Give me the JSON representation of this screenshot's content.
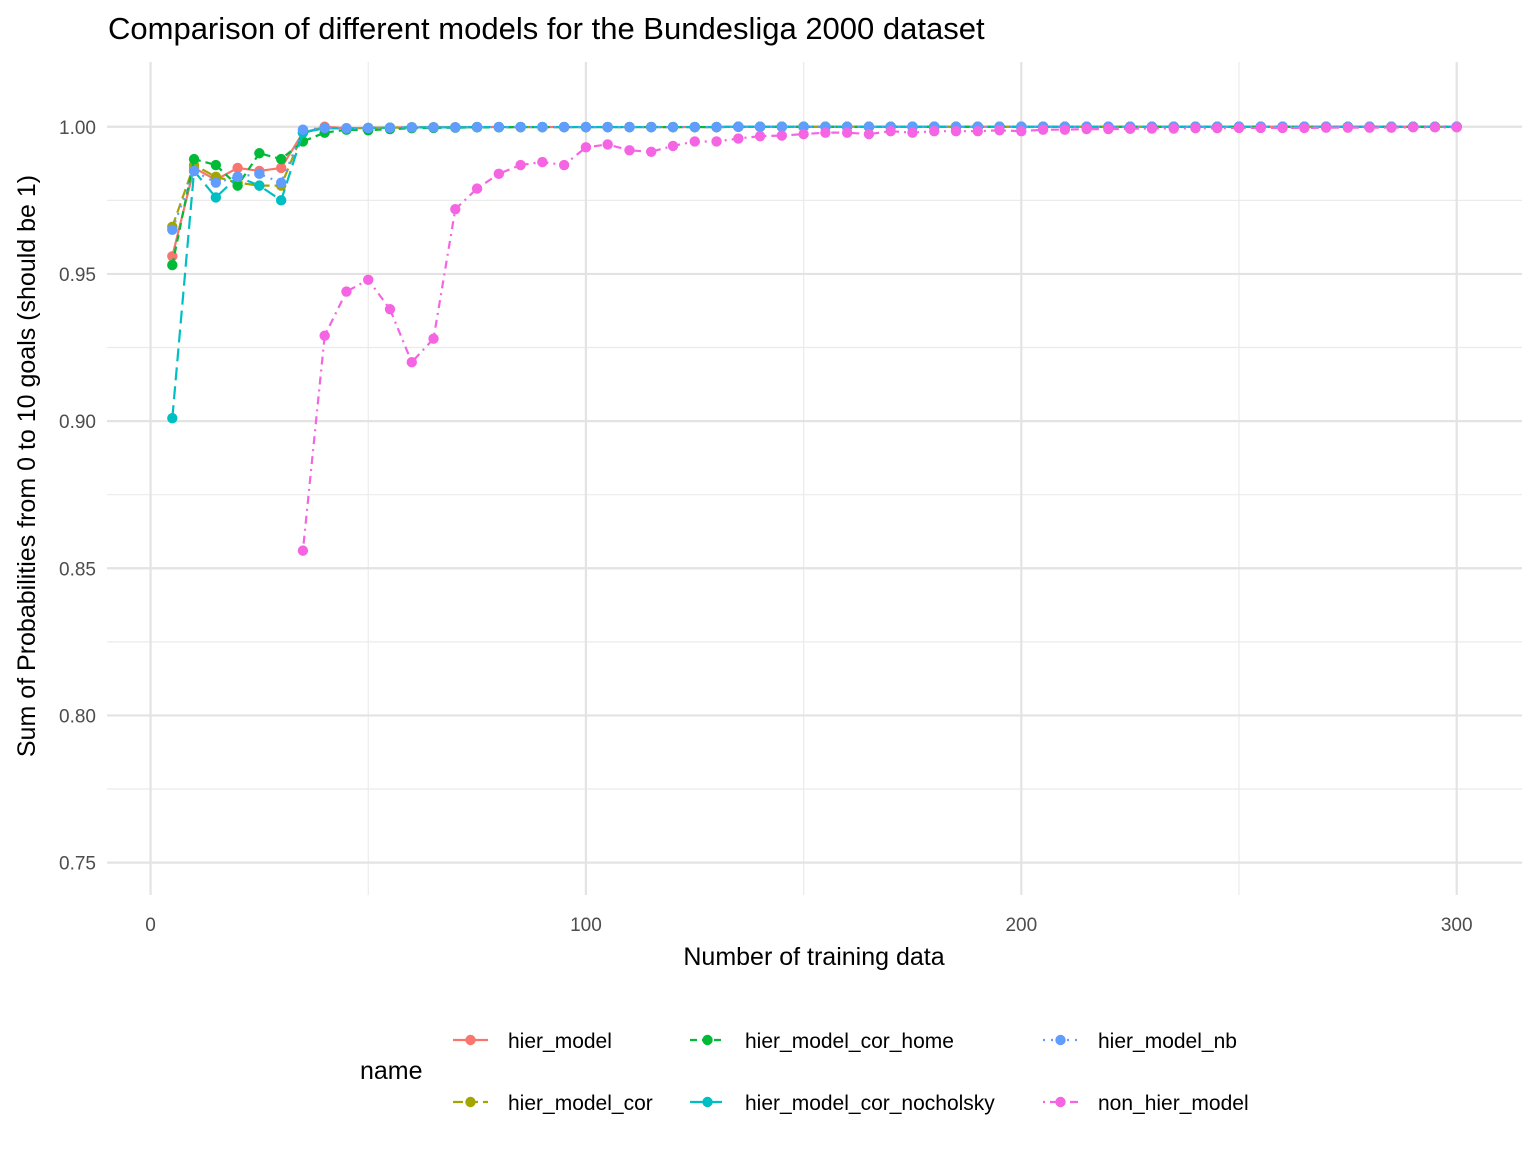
{
  "chart_data": {
    "type": "line",
    "title": "Comparison of different models for the Bundesliga 2000 dataset",
    "xlabel": "Number of training data",
    "ylabel": "Sum of Probabilities from 0 to 10 goals (should be 1)",
    "xlim": [
      -10,
      315
    ],
    "ylim": [
      0.739,
      1.022
    ],
    "x_ticks": [
      0,
      100,
      200,
      300
    ],
    "x_tick_labels": [
      "0",
      "100",
      "200",
      "300"
    ],
    "y_ticks": [
      0.75,
      0.8,
      0.85,
      0.9,
      0.95,
      1.0
    ],
    "y_tick_labels": [
      "0.75",
      "0.80",
      "0.85",
      "0.90",
      "0.95",
      "1.00"
    ],
    "grid": true,
    "legend": {
      "title": "name",
      "position": "bottom"
    },
    "series": [
      {
        "name": "hier_model",
        "color": "#F8766D",
        "dash": "solid",
        "x": [
          5,
          10,
          15,
          20,
          25,
          30,
          35,
          40,
          45,
          50,
          55,
          60,
          65,
          70,
          75,
          80,
          85,
          90,
          95,
          100,
          105,
          110,
          115,
          120,
          125,
          130,
          135,
          140,
          145,
          150,
          155,
          160,
          165,
          170,
          175,
          180,
          185,
          190,
          195,
          200,
          205,
          210,
          215,
          220,
          225,
          230,
          235,
          240,
          245,
          250,
          255,
          260,
          265,
          270,
          275,
          280,
          285,
          290,
          295,
          300
        ],
        "y": [
          0.956,
          0.986,
          0.982,
          0.986,
          0.985,
          0.986,
          0.998,
          1.0,
          0.9995,
          0.9996,
          0.9997,
          0.9998,
          0.9998,
          0.9998,
          0.9999,
          0.9999,
          0.9999,
          0.9999,
          0.9999,
          0.9999,
          0.9999,
          0.9999,
          0.9999,
          0.9999,
          0.9999,
          0.9999,
          1.0,
          1.0,
          1.0,
          1.0,
          1.0,
          1.0,
          1.0,
          1.0,
          1.0,
          1.0,
          1.0,
          1.0,
          1.0,
          1.0,
          1.0,
          1.0,
          1.0,
          1.0,
          1.0,
          1.0,
          1.0,
          1.0,
          1.0,
          1.0,
          1.0,
          1.0,
          1.0,
          1.0,
          1.0,
          1.0,
          1.0,
          1.0,
          1.0,
          1.0
        ]
      },
      {
        "name": "hier_model_cor",
        "color": "#A3A500",
        "dash": "longdash",
        "x": [
          5,
          10,
          15,
          20,
          25,
          30,
          35,
          40,
          45,
          50,
          55,
          60,
          65,
          70,
          75,
          80,
          85,
          90,
          95,
          100,
          105,
          110,
          115,
          120,
          125,
          130,
          135,
          140,
          145,
          150,
          155,
          160,
          165,
          170,
          175,
          180,
          185,
          190,
          195,
          200,
          205,
          210,
          215,
          220,
          225,
          230,
          235,
          240,
          245,
          250,
          255,
          260,
          265,
          270,
          275,
          280,
          285,
          290,
          295,
          300
        ],
        "y": [
          0.966,
          0.987,
          0.983,
          0.981,
          0.98,
          0.98,
          0.998,
          0.9995,
          0.9994,
          0.9996,
          0.9997,
          0.9998,
          0.9998,
          0.9998,
          0.9999,
          0.9999,
          0.9999,
          0.9999,
          0.9999,
          0.9999,
          0.9999,
          0.9999,
          0.9999,
          0.9999,
          0.9999,
          0.9999,
          1.0,
          1.0,
          1.0,
          1.0,
          1.0,
          1.0,
          1.0,
          1.0,
          1.0,
          1.0,
          1.0,
          1.0,
          1.0,
          1.0,
          1.0,
          1.0,
          1.0,
          1.0,
          1.0,
          1.0,
          1.0,
          1.0,
          1.0,
          1.0,
          1.0,
          1.0,
          1.0,
          1.0,
          1.0,
          1.0,
          1.0,
          1.0,
          1.0,
          1.0
        ]
      },
      {
        "name": "hier_model_cor_home",
        "color": "#00BA38",
        "dash": "dashed",
        "x": [
          5,
          10,
          15,
          20,
          25,
          30,
          35,
          40,
          45,
          50,
          55,
          60,
          65,
          70,
          75,
          80,
          85,
          90,
          95,
          100,
          105,
          110,
          115,
          120,
          125,
          130,
          135,
          140,
          145,
          150,
          155,
          160,
          165,
          170,
          175,
          180,
          185,
          190,
          195,
          200,
          205,
          210,
          215,
          220,
          225,
          230,
          235,
          240,
          245,
          250,
          255,
          260,
          265,
          270,
          275,
          280,
          285,
          290,
          295,
          300
        ],
        "y": [
          0.953,
          0.989,
          0.987,
          0.98,
          0.991,
          0.989,
          0.995,
          0.998,
          0.999,
          0.9988,
          0.9992,
          0.9995,
          0.9996,
          0.9997,
          0.9998,
          0.9998,
          0.9999,
          0.9999,
          0.9999,
          0.9999,
          0.9999,
          0.9999,
          0.9999,
          0.9999,
          0.9999,
          0.9999,
          1.0,
          1.0,
          1.0,
          1.0,
          1.0,
          1.0,
          1.0,
          1.0,
          1.0,
          1.0,
          1.0,
          1.0,
          1.0,
          1.0,
          1.0,
          1.0,
          1.0,
          1.0,
          1.0,
          1.0,
          1.0,
          1.0,
          1.0,
          1.0,
          1.0,
          1.0,
          1.0,
          1.0,
          1.0,
          1.0,
          1.0,
          1.0,
          1.0,
          1.0
        ]
      },
      {
        "name": "hier_model_cor_nocholsky",
        "color": "#00BFC4",
        "dash": "dash",
        "x": [
          5,
          10,
          15,
          20,
          25,
          30,
          35,
          40,
          45,
          50,
          55,
          60,
          65,
          70,
          75,
          80,
          85,
          90,
          95,
          100,
          105,
          110,
          115,
          120,
          125,
          130,
          135,
          140,
          145,
          150,
          155,
          160,
          165,
          170,
          175,
          180,
          185,
          190,
          195,
          200,
          205,
          210,
          215,
          220,
          225,
          230,
          235,
          240,
          245,
          250,
          255,
          260,
          265,
          270,
          275,
          280,
          285,
          290,
          295,
          300
        ],
        "y": [
          0.901,
          0.985,
          0.976,
          0.983,
          0.98,
          0.975,
          0.998,
          0.9996,
          0.9994,
          0.9996,
          0.9997,
          0.9998,
          0.9998,
          0.9998,
          0.9999,
          0.9999,
          0.9999,
          0.9999,
          0.9999,
          0.9999,
          0.9999,
          0.9999,
          0.9999,
          0.9999,
          0.9999,
          0.9999,
          1.0,
          1.0,
          1.0,
          1.0,
          1.0,
          1.0,
          1.0,
          1.0,
          1.0,
          1.0,
          1.0,
          1.0,
          1.0,
          1.0,
          1.0,
          1.0,
          1.0,
          1.0,
          1.0,
          1.0,
          1.0,
          1.0,
          1.0,
          1.0,
          1.0,
          1.0,
          1.0,
          1.0,
          1.0,
          1.0,
          1.0,
          1.0,
          1.0,
          1.0
        ]
      },
      {
        "name": "hier_model_nb",
        "color": "#619CFF",
        "dash": "dotted",
        "x": [
          5,
          10,
          15,
          20,
          25,
          30,
          35,
          40,
          45,
          50,
          55,
          60,
          65,
          70,
          75,
          80,
          85,
          90,
          95,
          100,
          105,
          110,
          115,
          120,
          125,
          130,
          135,
          140,
          145,
          150,
          155,
          160,
          165,
          170,
          175,
          180,
          185,
          190,
          195,
          200,
          205,
          210,
          215,
          220,
          225,
          230,
          235,
          240,
          245,
          250,
          255,
          260,
          265,
          270,
          275,
          280,
          285,
          290,
          295,
          300
        ],
        "y": [
          0.965,
          0.985,
          0.981,
          0.983,
          0.984,
          0.981,
          0.999,
          0.9996,
          0.9995,
          0.9996,
          0.9997,
          0.9998,
          0.9998,
          0.9998,
          0.9999,
          0.9999,
          0.9999,
          0.9999,
          0.9999,
          0.9999,
          0.9999,
          0.9999,
          0.9999,
          0.9999,
          0.9999,
          0.9999,
          1.0,
          1.0,
          1.0,
          1.0,
          1.0,
          1.0,
          1.0,
          1.0,
          1.0,
          1.0,
          1.0,
          1.0,
          1.0,
          1.0,
          1.0,
          1.0,
          1.0,
          1.0,
          1.0,
          1.0,
          1.0,
          1.0,
          1.0,
          1.0,
          1.0,
          1.0,
          1.0,
          1.0,
          1.0,
          1.0,
          1.0,
          1.0,
          1.0,
          1.0
        ]
      },
      {
        "name": "non_hier_model",
        "color": "#F564E3",
        "dash": "dotdash",
        "x": [
          35,
          40,
          45,
          50,
          55,
          60,
          65,
          70,
          75,
          80,
          85,
          90,
          95,
          100,
          105,
          110,
          115,
          120,
          125,
          130,
          135,
          140,
          145,
          150,
          155,
          160,
          165,
          170,
          175,
          180,
          185,
          190,
          195,
          200,
          205,
          210,
          215,
          220,
          225,
          230,
          235,
          240,
          245,
          250,
          255,
          260,
          265,
          270,
          275,
          280,
          285,
          290,
          295,
          300
        ],
        "y": [
          0.856,
          0.929,
          0.944,
          0.948,
          0.938,
          0.92,
          0.928,
          0.972,
          0.979,
          0.984,
          0.987,
          0.988,
          0.987,
          0.993,
          0.994,
          0.992,
          0.9915,
          0.9935,
          0.995,
          0.995,
          0.996,
          0.9968,
          0.997,
          0.9975,
          0.998,
          0.998,
          0.9975,
          0.9985,
          0.998,
          0.9985,
          0.9985,
          0.9985,
          0.9988,
          0.9985,
          0.999,
          0.999,
          0.9992,
          0.9992,
          0.9993,
          0.9994,
          0.9994,
          0.9995,
          0.9995,
          0.9996,
          0.9996,
          0.9996,
          0.9996,
          0.9997,
          0.9997,
          0.9997,
          0.9997,
          0.9998,
          0.9998,
          0.9998
        ]
      }
    ]
  }
}
